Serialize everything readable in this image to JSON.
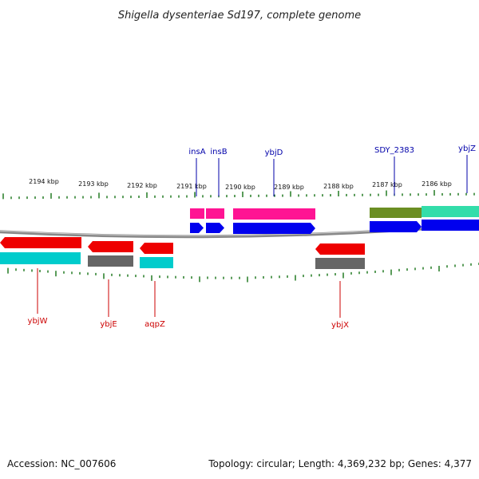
{
  "title": "Shigella dysenteriae Sd197, complete genome",
  "footer": {
    "accession": "Accession: NC_007606",
    "topology": "Topology: circular; Length: 4,369,232 bp; Genes: 4,377"
  },
  "colors": {
    "gene_label_top": "#0000aa",
    "gene_label_bottom": "#cc0000",
    "tick": "#006600",
    "backbone": "#888888",
    "cds": "#0000ee",
    "gene_forward": "#ff1493",
    "gene_reverse": "#ee0000",
    "cds_reverse_gray": "#666666",
    "cds_reverse_cyan": "#00cccc",
    "ybjZ_feature": "#33ddaa",
    "sdy_feature": "#6b8e23"
  },
  "scale_labels": [
    "2194 kbp",
    "2193 kbp",
    "2192 kbp",
    "2191 kbp",
    "2190 kbp",
    "2189 kbp",
    "2188 kbp",
    "2187 kbp",
    "2186 kbp"
  ],
  "gene_labels_top": [
    "insA",
    "insB",
    "ybjD",
    "SDY_2383",
    "ybjZ"
  ],
  "gene_labels_bottom": [
    "ybjW",
    "ybjE",
    "aqpZ",
    "ybjX"
  ]
}
